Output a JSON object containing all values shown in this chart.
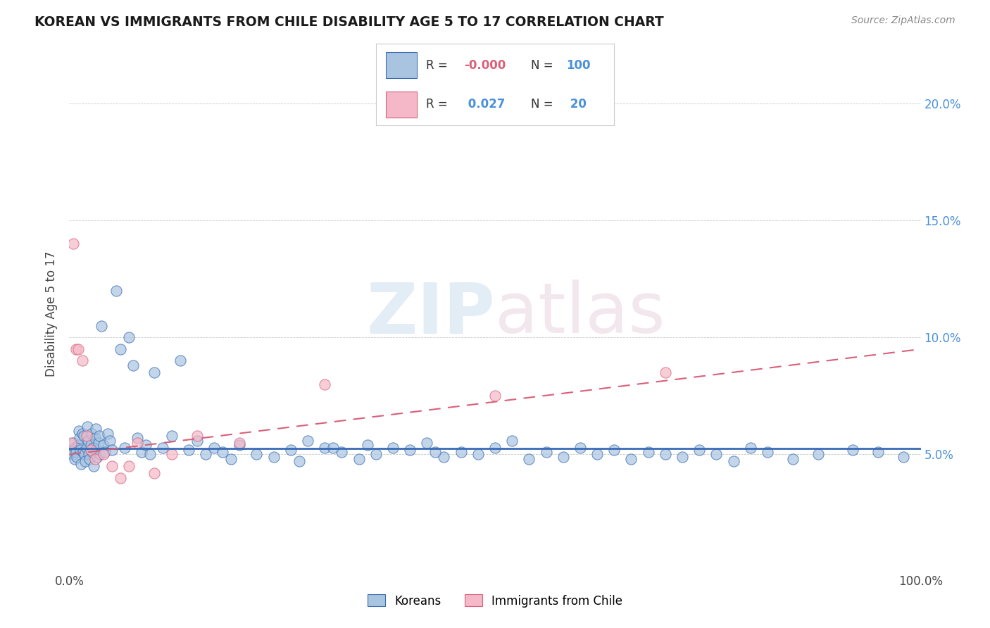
{
  "title": "KOREAN VS IMMIGRANTS FROM CHILE DISABILITY AGE 5 TO 17 CORRELATION CHART",
  "source": "Source: ZipAtlas.com",
  "ylabel": "Disability Age 5 to 17",
  "xlim": [
    0,
    100
  ],
  "ylim": [
    0,
    22
  ],
  "color_korean": "#a8c4e0",
  "color_chile": "#f4b8c8",
  "color_trend_korean": "#3a6cb5",
  "color_trend_chile": "#d9607a",
  "background_color": "#ffffff",
  "watermark_zip": "ZIP",
  "watermark_atlas": "atlas",
  "korean_x": [
    0.3,
    0.4,
    0.5,
    0.6,
    0.7,
    0.8,
    0.9,
    1.0,
    1.1,
    1.2,
    1.3,
    1.4,
    1.5,
    1.6,
    1.7,
    1.8,
    1.9,
    2.0,
    2.1,
    2.2,
    2.3,
    2.4,
    2.5,
    2.6,
    2.7,
    2.8,
    2.9,
    3.0,
    3.1,
    3.2,
    3.3,
    3.4,
    3.5,
    3.6,
    3.8,
    4.0,
    4.2,
    4.5,
    4.8,
    5.0,
    5.5,
    6.0,
    6.5,
    7.0,
    7.5,
    8.0,
    8.5,
    9.0,
    9.5,
    10.0,
    11.0,
    12.0,
    13.0,
    14.0,
    15.0,
    16.0,
    17.0,
    18.0,
    19.0,
    20.0,
    22.0,
    24.0,
    26.0,
    28.0,
    30.0,
    32.0,
    34.0,
    36.0,
    38.0,
    40.0,
    42.0,
    44.0,
    46.0,
    48.0,
    50.0,
    52.0,
    54.0,
    56.0,
    58.0,
    60.0,
    62.0,
    64.0,
    66.0,
    68.0,
    70.0,
    72.0,
    74.0,
    76.0,
    78.0,
    80.0,
    82.0,
    85.0,
    88.0,
    92.0,
    95.0,
    98.0,
    35.0,
    27.0,
    43.0,
    31.0
  ],
  "korean_y": [
    5.2,
    5.0,
    5.5,
    4.8,
    5.3,
    5.1,
    4.9,
    5.4,
    6.0,
    5.7,
    5.2,
    4.6,
    5.9,
    5.1,
    5.8,
    5.0,
    4.7,
    5.3,
    6.2,
    5.6,
    5.0,
    4.8,
    5.4,
    5.9,
    5.1,
    5.3,
    4.5,
    5.7,
    6.1,
    5.2,
    4.9,
    5.5,
    5.8,
    5.0,
    10.5,
    5.4,
    5.1,
    5.9,
    5.6,
    5.2,
    12.0,
    9.5,
    5.3,
    10.0,
    8.8,
    5.7,
    5.1,
    5.4,
    5.0,
    8.5,
    5.3,
    5.8,
    9.0,
    5.2,
    5.6,
    5.0,
    5.3,
    5.1,
    4.8,
    5.4,
    5.0,
    4.9,
    5.2,
    5.6,
    5.3,
    5.1,
    4.8,
    5.0,
    5.3,
    5.2,
    5.5,
    4.9,
    5.1,
    5.0,
    5.3,
    5.6,
    4.8,
    5.1,
    4.9,
    5.3,
    5.0,
    5.2,
    4.8,
    5.1,
    5.0,
    4.9,
    5.2,
    5.0,
    4.7,
    5.3,
    5.1,
    4.8,
    5.0,
    5.2,
    5.1,
    4.9,
    5.4,
    4.7,
    5.1,
    5.3
  ],
  "chile_x": [
    0.2,
    0.5,
    0.8,
    1.0,
    1.5,
    2.0,
    2.5,
    3.0,
    4.0,
    5.0,
    6.0,
    7.0,
    8.0,
    10.0,
    12.0,
    15.0,
    20.0,
    30.0,
    50.0,
    70.0
  ],
  "chile_y": [
    5.5,
    14.0,
    9.5,
    9.5,
    9.0,
    5.8,
    5.2,
    4.8,
    5.0,
    4.5,
    4.0,
    4.5,
    5.5,
    4.2,
    5.0,
    5.8,
    5.5,
    8.0,
    7.5,
    8.5
  ],
  "trend_korean_y": 5.25,
  "trend_chile_intercept": 5.0,
  "trend_chile_slope": 0.045,
  "legend_r1_val": "-0.000",
  "legend_n1_val": "100",
  "legend_r2_val": "0.027",
  "legend_n2_val": "20"
}
